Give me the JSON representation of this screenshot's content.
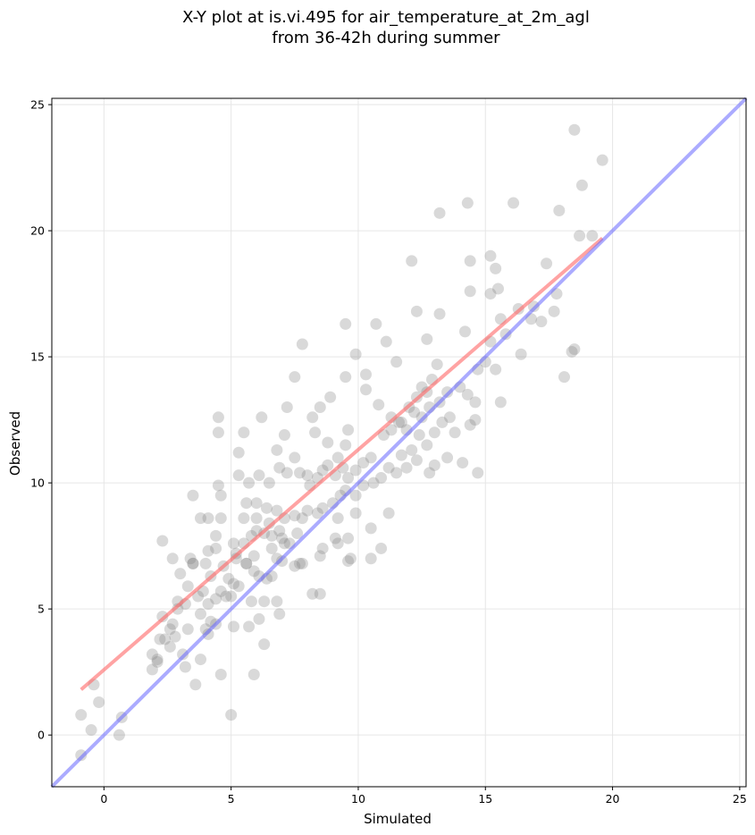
{
  "chart_data": {
    "type": "scatter",
    "title": "X-Y plot at is.vi.495 for air_temperature_at_2m_agl",
    "subtitle": "from 36-42h during summer",
    "xlabel": "Simulated",
    "ylabel": "Observed",
    "xlim": [
      -2.05,
      25.25
    ],
    "ylim": [
      -2.05,
      25.25
    ],
    "xticks": [
      0,
      5,
      10,
      15,
      20,
      25
    ],
    "yticks": [
      0,
      5,
      10,
      15,
      20,
      25
    ],
    "grid": true,
    "colors": {
      "points": "#808080",
      "fit_line": "#ff6666",
      "identity_line": "#6666ff"
    },
    "fit_line": {
      "x": [
        -0.9,
        19.6
      ],
      "y": [
        1.8,
        19.7
      ]
    },
    "identity_line": {
      "x": [
        -2.05,
        25.25
      ],
      "y": [
        -2.05,
        25.25
      ]
    },
    "points": [
      [
        -0.9,
        -0.8
      ],
      [
        -0.9,
        0.8
      ],
      [
        -0.5,
        0.2
      ],
      [
        -0.4,
        2.0
      ],
      [
        -0.2,
        1.3
      ],
      [
        0.6,
        0.0
      ],
      [
        0.7,
        0.7
      ],
      [
        5.0,
        0.8
      ],
      [
        1.9,
        2.6
      ],
      [
        1.9,
        3.2
      ],
      [
        2.1,
        3.0
      ],
      [
        2.4,
        3.8
      ],
      [
        2.6,
        3.5
      ],
      [
        2.8,
        3.9
      ],
      [
        3.1,
        3.2
      ],
      [
        3.2,
        2.7
      ],
      [
        3.8,
        3.0
      ],
      [
        3.6,
        2.0
      ],
      [
        4.6,
        2.4
      ],
      [
        5.9,
        2.4
      ],
      [
        2.2,
        3.8
      ],
      [
        2.3,
        4.7
      ],
      [
        2.6,
        4.2
      ],
      [
        2.9,
        5.3
      ],
      [
        3.2,
        5.2
      ],
      [
        3.3,
        4.2
      ],
      [
        3.8,
        4.8
      ],
      [
        4.1,
        4.0
      ],
      [
        4.4,
        4.4
      ],
      [
        4.8,
        5.5
      ],
      [
        5.1,
        4.3
      ],
      [
        5.7,
        4.3
      ],
      [
        6.1,
        4.6
      ],
      [
        6.3,
        3.6
      ],
      [
        6.9,
        4.8
      ],
      [
        2.3,
        7.7
      ],
      [
        2.7,
        7.0
      ],
      [
        3.4,
        7.0
      ],
      [
        3.5,
        6.8
      ],
      [
        4.0,
        6.8
      ],
      [
        4.1,
        7.3
      ],
      [
        4.4,
        7.4
      ],
      [
        3.8,
        8.6
      ],
      [
        4.1,
        8.6
      ],
      [
        4.4,
        7.9
      ],
      [
        4.6,
        8.6
      ],
      [
        3.5,
        9.5
      ],
      [
        4.5,
        9.9
      ],
      [
        4.6,
        9.5
      ],
      [
        4.5,
        12.0
      ],
      [
        4.5,
        12.6
      ],
      [
        5.3,
        11.2
      ],
      [
        5.5,
        12.0
      ],
      [
        5.3,
        10.3
      ],
      [
        5.7,
        10.0
      ],
      [
        6.1,
        10.3
      ],
      [
        5.1,
        7.6
      ],
      [
        5.2,
        7.2
      ],
      [
        5.5,
        7.6
      ],
      [
        5.8,
        7.9
      ],
      [
        6.0,
        8.1
      ],
      [
        6.3,
        8.0
      ],
      [
        6.6,
        7.9
      ],
      [
        5.5,
        8.6
      ],
      [
        6.0,
        8.6
      ],
      [
        6.5,
        8.4
      ],
      [
        6.9,
        8.1
      ],
      [
        5.6,
        9.2
      ],
      [
        6.0,
        9.2
      ],
      [
        6.4,
        9.0
      ],
      [
        6.8,
        8.9
      ],
      [
        7.1,
        8.6
      ],
      [
        7.5,
        8.7
      ],
      [
        7.8,
        8.6
      ],
      [
        8.0,
        8.9
      ],
      [
        5.6,
        6.8
      ],
      [
        5.9,
        6.5
      ],
      [
        6.1,
        6.3
      ],
      [
        6.4,
        6.2
      ],
      [
        6.8,
        7.0
      ],
      [
        7.1,
        7.6
      ],
      [
        7.5,
        6.7
      ],
      [
        7.8,
        6.8
      ],
      [
        5.8,
        5.3
      ],
      [
        6.3,
        5.3
      ],
      [
        6.8,
        5.3
      ],
      [
        5.0,
        5.5
      ],
      [
        5.1,
        6.0
      ],
      [
        5.3,
        5.9
      ],
      [
        4.6,
        5.7
      ],
      [
        3.9,
        5.7
      ],
      [
        4.1,
        5.2
      ],
      [
        4.2,
        4.5
      ],
      [
        4.4,
        5.4
      ],
      [
        6.2,
        12.6
      ],
      [
        6.5,
        10.0
      ],
      [
        6.9,
        10.6
      ],
      [
        7.2,
        10.4
      ],
      [
        7.5,
        11.0
      ],
      [
        7.1,
        11.9
      ],
      [
        7.2,
        13.0
      ],
      [
        6.8,
        11.3
      ],
      [
        7.7,
        10.4
      ],
      [
        8.0,
        10.3
      ],
      [
        7.5,
        14.2
      ],
      [
        7.8,
        15.5
      ],
      [
        8.2,
        12.6
      ],
      [
        8.3,
        12.0
      ],
      [
        8.5,
        13.0
      ],
      [
        8.9,
        13.4
      ],
      [
        8.8,
        11.6
      ],
      [
        9.2,
        11.0
      ],
      [
        9.5,
        11.5
      ],
      [
        9.6,
        12.1
      ],
      [
        8.1,
        9.9
      ],
      [
        8.4,
        10.2
      ],
      [
        8.6,
        10.5
      ],
      [
        8.8,
        10.7
      ],
      [
        9.1,
        10.3
      ],
      [
        9.4,
        10.6
      ],
      [
        9.6,
        10.2
      ],
      [
        9.9,
        10.5
      ],
      [
        10.2,
        10.8
      ],
      [
        10.5,
        11.0
      ],
      [
        8.4,
        8.8
      ],
      [
        8.6,
        9.0
      ],
      [
        9.0,
        9.2
      ],
      [
        9.3,
        9.5
      ],
      [
        9.5,
        9.7
      ],
      [
        9.9,
        9.5
      ],
      [
        10.2,
        9.9
      ],
      [
        10.6,
        10.0
      ],
      [
        10.9,
        10.2
      ],
      [
        11.2,
        10.6
      ],
      [
        8.6,
        7.4
      ],
      [
        9.1,
        7.8
      ],
      [
        9.2,
        8.6
      ],
      [
        9.6,
        7.8
      ],
      [
        9.9,
        8.8
      ],
      [
        9.7,
        7.0
      ],
      [
        10.5,
        7.0
      ],
      [
        10.5,
        8.2
      ],
      [
        10.9,
        7.4
      ],
      [
        11.2,
        8.8
      ],
      [
        8.2,
        5.6
      ],
      [
        8.5,
        5.6
      ],
      [
        7.7,
        6.8
      ],
      [
        8.5,
        7.1
      ],
      [
        9.2,
        7.6
      ],
      [
        9.6,
        6.9
      ],
      [
        9.5,
        14.2
      ],
      [
        9.5,
        16.3
      ],
      [
        9.9,
        15.1
      ],
      [
        10.3,
        14.3
      ],
      [
        10.7,
        16.3
      ],
      [
        10.3,
        13.7
      ],
      [
        10.8,
        13.1
      ],
      [
        11.1,
        15.6
      ],
      [
        11.5,
        14.8
      ],
      [
        11.3,
        12.6
      ],
      [
        11.7,
        12.4
      ],
      [
        12.0,
        13.0
      ],
      [
        12.3,
        13.4
      ],
      [
        12.5,
        13.8
      ],
      [
        12.7,
        13.6
      ],
      [
        12.9,
        14.1
      ],
      [
        13.1,
        14.7
      ],
      [
        11.0,
        11.9
      ],
      [
        11.3,
        12.1
      ],
      [
        11.6,
        12.4
      ],
      [
        11.9,
        12.1
      ],
      [
        12.2,
        12.8
      ],
      [
        12.5,
        12.6
      ],
      [
        12.8,
        13.0
      ],
      [
        13.2,
        13.2
      ],
      [
        13.5,
        13.6
      ],
      [
        11.7,
        11.1
      ],
      [
        12.1,
        11.3
      ],
      [
        12.4,
        11.9
      ],
      [
        12.7,
        11.5
      ],
      [
        13.0,
        12.0
      ],
      [
        13.3,
        12.4
      ],
      [
        13.6,
        12.6
      ],
      [
        13.8,
        12.0
      ],
      [
        11.5,
        10.4
      ],
      [
        11.9,
        10.6
      ],
      [
        12.3,
        10.9
      ],
      [
        12.8,
        10.4
      ],
      [
        13.0,
        10.7
      ],
      [
        13.5,
        11.0
      ],
      [
        14.1,
        10.8
      ],
      [
        14.7,
        10.4
      ],
      [
        12.1,
        18.8
      ],
      [
        12.3,
        16.8
      ],
      [
        12.7,
        15.7
      ],
      [
        13.2,
        20.7
      ],
      [
        13.2,
        16.7
      ],
      [
        14.2,
        16.0
      ],
      [
        14.3,
        21.1
      ],
      [
        14.4,
        17.6
      ],
      [
        14.4,
        18.8
      ],
      [
        15.2,
        19.0
      ],
      [
        15.4,
        18.5
      ],
      [
        15.5,
        17.7
      ],
      [
        15.2,
        17.5
      ],
      [
        15.6,
        16.5
      ],
      [
        16.1,
        21.1
      ],
      [
        16.3,
        16.9
      ],
      [
        15.8,
        15.9
      ],
      [
        16.4,
        15.1
      ],
      [
        16.8,
        16.5
      ],
      [
        17.4,
        18.7
      ],
      [
        17.7,
        16.8
      ],
      [
        17.8,
        17.5
      ],
      [
        17.9,
        20.8
      ],
      [
        18.1,
        14.2
      ],
      [
        18.4,
        15.2
      ],
      [
        18.5,
        15.3
      ],
      [
        18.5,
        24.0
      ],
      [
        18.7,
        19.8
      ],
      [
        18.8,
        21.8
      ],
      [
        19.6,
        22.8
      ],
      [
        19.2,
        19.8
      ],
      [
        17.2,
        16.4
      ],
      [
        16.9,
        17.0
      ],
      [
        14.0,
        13.8
      ],
      [
        14.3,
        13.5
      ],
      [
        14.6,
        13.2
      ],
      [
        14.7,
        14.5
      ],
      [
        15.0,
        14.8
      ],
      [
        15.4,
        14.5
      ],
      [
        15.6,
        13.2
      ],
      [
        15.2,
        15.6
      ],
      [
        14.4,
        12.3
      ],
      [
        14.6,
        12.5
      ],
      [
        3.7,
        5.5
      ],
      [
        3.5,
        6.8
      ],
      [
        2.9,
        5.0
      ],
      [
        2.7,
        4.4
      ],
      [
        2.1,
        2.9
      ],
      [
        4.9,
        6.2
      ],
      [
        5.6,
        6.8
      ],
      [
        6.6,
        6.3
      ],
      [
        7.0,
        6.9
      ],
      [
        7.3,
        7.6
      ],
      [
        7.6,
        8.0
      ],
      [
        3.0,
        6.4
      ],
      [
        3.3,
        5.9
      ],
      [
        4.2,
        6.3
      ],
      [
        4.7,
        6.7
      ],
      [
        5.2,
        7.0
      ],
      [
        5.9,
        7.1
      ],
      [
        6.6,
        7.4
      ],
      [
        7.0,
        7.8
      ],
      [
        4.0,
        4.2
      ]
    ]
  }
}
